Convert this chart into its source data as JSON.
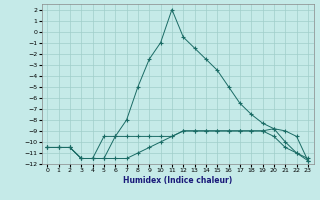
{
  "xlabel": "Humidex (Indice chaleur)",
  "ylabel": "",
  "bg_color": "#c5eae8",
  "grid_color": "#a0ceca",
  "line_color": "#1a6b65",
  "xlim": [
    -0.5,
    23.5
  ],
  "ylim": [
    -12,
    2.5
  ],
  "xticks": [
    0,
    1,
    2,
    3,
    4,
    5,
    6,
    7,
    8,
    9,
    10,
    11,
    12,
    13,
    14,
    15,
    16,
    17,
    18,
    19,
    20,
    21,
    22,
    23
  ],
  "yticks": [
    2,
    1,
    0,
    -1,
    -2,
    -3,
    -4,
    -5,
    -6,
    -7,
    -8,
    -9,
    -10,
    -11,
    -12
  ],
  "peaked_x": [
    0,
    1,
    2,
    3,
    4,
    5,
    6,
    7,
    8,
    9,
    10,
    11,
    12,
    13,
    14,
    15,
    16,
    17,
    18,
    19,
    20,
    21,
    22,
    23
  ],
  "peaked_y": [
    -10.5,
    -10.5,
    -10.5,
    -11.5,
    -11.5,
    -11.5,
    -9.5,
    -8.0,
    -5.0,
    -2.5,
    -1.0,
    2.0,
    -0.5,
    -1.5,
    -2.5,
    -3.5,
    -5.0,
    -6.5,
    -7.5,
    -8.3,
    -8.8,
    -10.0,
    -11.0,
    -11.5
  ],
  "flat1_x": [
    0,
    1,
    2,
    3,
    4,
    5,
    6,
    7,
    8,
    9,
    10,
    11,
    12,
    13,
    14,
    15,
    16,
    17,
    18,
    19,
    20,
    21,
    22,
    23
  ],
  "flat1_y": [
    -10.5,
    -10.5,
    -10.5,
    -11.5,
    -11.5,
    -9.5,
    -9.5,
    -9.5,
    -9.5,
    -9.5,
    -9.5,
    -9.5,
    -9.0,
    -9.0,
    -9.0,
    -9.0,
    -9.0,
    -9.0,
    -9.0,
    -9.0,
    -8.8,
    -9.0,
    -9.5,
    -11.7
  ],
  "flat2_x": [
    0,
    1,
    2,
    3,
    4,
    5,
    6,
    7,
    8,
    9,
    10,
    11,
    12,
    13,
    14,
    15,
    16,
    17,
    18,
    19,
    20,
    21,
    22,
    23
  ],
  "flat2_y": [
    -10.5,
    -10.5,
    -10.5,
    -11.5,
    -11.5,
    -11.5,
    -11.5,
    -11.5,
    -11.0,
    -10.5,
    -10.0,
    -9.5,
    -9.0,
    -9.0,
    -9.0,
    -9.0,
    -9.0,
    -9.0,
    -9.0,
    -9.0,
    -9.5,
    -10.5,
    -11.0,
    -11.7
  ]
}
